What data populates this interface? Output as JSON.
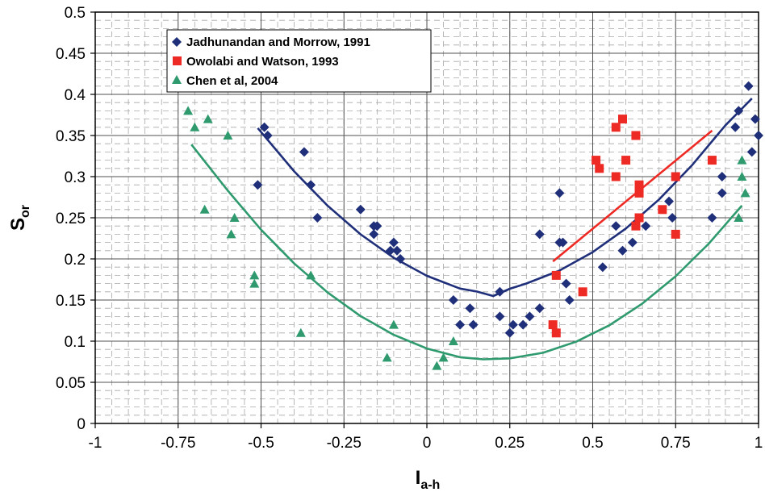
{
  "chart_data": {
    "type": "scatter",
    "title": "",
    "xlabel": {
      "main": "I",
      "sub": "a-h"
    },
    "ylabel": {
      "main": "S",
      "sub": "or"
    },
    "xlim": [
      -1,
      1
    ],
    "ylim": [
      0,
      0.5
    ],
    "x_ticks": [
      "-1",
      "-0.75",
      "-0.5",
      "-0.25",
      "0",
      "0.25",
      "0.5",
      "0.75",
      "1"
    ],
    "y_ticks": [
      "0",
      "0.05",
      "0.1",
      "0.15",
      "0.2",
      "0.25",
      "0.3",
      "0.35",
      "0.4",
      "0.45",
      "0.5"
    ],
    "grid": true,
    "legend_position": "top-left",
    "series": [
      {
        "name": "Jadhunandan and Morrow, 1991",
        "marker": "diamond",
        "color": "#1f2f7a",
        "points": [
          [
            -0.51,
            0.29
          ],
          [
            -0.49,
            0.36
          ],
          [
            -0.48,
            0.35
          ],
          [
            -0.37,
            0.33
          ],
          [
            -0.35,
            0.29
          ],
          [
            -0.33,
            0.25
          ],
          [
            -0.2,
            0.26
          ],
          [
            -0.16,
            0.23
          ],
          [
            -0.16,
            0.24
          ],
          [
            -0.15,
            0.24
          ],
          [
            -0.11,
            0.21
          ],
          [
            -0.1,
            0.22
          ],
          [
            -0.09,
            0.21
          ],
          [
            -0.08,
            0.2
          ],
          [
            0.08,
            0.15
          ],
          [
            0.1,
            0.12
          ],
          [
            0.13,
            0.14
          ],
          [
            0.14,
            0.12
          ],
          [
            0.22,
            0.13
          ],
          [
            0.22,
            0.16
          ],
          [
            0.25,
            0.11
          ],
          [
            0.26,
            0.12
          ],
          [
            0.29,
            0.12
          ],
          [
            0.31,
            0.13
          ],
          [
            0.34,
            0.14
          ],
          [
            0.34,
            0.23
          ],
          [
            0.4,
            0.28
          ],
          [
            0.4,
            0.22
          ],
          [
            0.41,
            0.22
          ],
          [
            0.42,
            0.17
          ],
          [
            0.43,
            0.15
          ],
          [
            0.53,
            0.19
          ],
          [
            0.57,
            0.24
          ],
          [
            0.59,
            0.21
          ],
          [
            0.62,
            0.22
          ],
          [
            0.66,
            0.24
          ],
          [
            0.73,
            0.27
          ],
          [
            0.74,
            0.25
          ],
          [
            0.86,
            0.25
          ],
          [
            0.89,
            0.3
          ],
          [
            0.89,
            0.28
          ],
          [
            0.93,
            0.36
          ],
          [
            0.94,
            0.38
          ],
          [
            0.97,
            0.41
          ],
          [
            0.98,
            0.33
          ],
          [
            0.99,
            0.37
          ],
          [
            1.0,
            0.35
          ]
        ],
        "trend": [
          [
            -0.51,
            0.359
          ],
          [
            -0.4,
            0.3064
          ],
          [
            -0.3,
            0.2649
          ],
          [
            -0.2,
            0.2299
          ],
          [
            -0.1,
            0.2014
          ],
          [
            0.0,
            0.1794
          ],
          [
            0.1,
            0.1639
          ],
          [
            0.15,
            0.1604
          ],
          [
            0.2,
            0.1549
          ],
          [
            0.25,
            0.1637
          ],
          [
            0.3,
            0.1701
          ],
          [
            0.4,
            0.1859
          ],
          [
            0.5,
            0.2082
          ],
          [
            0.6,
            0.237
          ],
          [
            0.7,
            0.2723
          ],
          [
            0.8,
            0.3141
          ],
          [
            0.9,
            0.3624
          ],
          [
            0.98,
            0.395
          ]
        ]
      },
      {
        "name": "Owolabi and Watson, 1993",
        "marker": "square",
        "color": "#ee2a24",
        "points": [
          [
            0.38,
            0.12
          ],
          [
            0.39,
            0.11
          ],
          [
            0.39,
            0.18
          ],
          [
            0.47,
            0.16
          ],
          [
            0.51,
            0.32
          ],
          [
            0.52,
            0.31
          ],
          [
            0.57,
            0.36
          ],
          [
            0.57,
            0.3
          ],
          [
            0.59,
            0.37
          ],
          [
            0.6,
            0.32
          ],
          [
            0.63,
            0.35
          ],
          [
            0.63,
            0.24
          ],
          [
            0.64,
            0.29
          ],
          [
            0.64,
            0.28
          ],
          [
            0.64,
            0.25
          ],
          [
            0.71,
            0.26
          ],
          [
            0.75,
            0.3
          ],
          [
            0.75,
            0.23
          ],
          [
            0.86,
            0.32
          ]
        ],
        "trend": [
          [
            0.38,
            0.197
          ],
          [
            0.86,
            0.356
          ]
        ]
      },
      {
        "name": "Chen et al, 2004",
        "marker": "triangle",
        "color": "#2e9a6e",
        "points": [
          [
            -0.72,
            0.38
          ],
          [
            -0.7,
            0.36
          ],
          [
            -0.67,
            0.26
          ],
          [
            -0.66,
            0.37
          ],
          [
            -0.6,
            0.35
          ],
          [
            -0.59,
            0.23
          ],
          [
            -0.58,
            0.25
          ],
          [
            -0.52,
            0.18
          ],
          [
            -0.52,
            0.17
          ],
          [
            -0.38,
            0.11
          ],
          [
            -0.35,
            0.18
          ],
          [
            -0.12,
            0.08
          ],
          [
            -0.1,
            0.12
          ],
          [
            0.03,
            0.07
          ],
          [
            0.05,
            0.08
          ],
          [
            0.08,
            0.1
          ],
          [
            0.94,
            0.25
          ],
          [
            0.95,
            0.32
          ],
          [
            0.95,
            0.3
          ],
          [
            0.96,
            0.28
          ]
        ],
        "trend": [
          [
            -0.71,
            0.339
          ],
          [
            -0.6,
            0.2828
          ],
          [
            -0.5,
            0.2355
          ],
          [
            -0.4,
            0.1944
          ],
          [
            -0.3,
            0.1594
          ],
          [
            -0.2,
            0.1305
          ],
          [
            -0.1,
            0.1077
          ],
          [
            0.0,
            0.0911
          ],
          [
            0.1,
            0.0805
          ],
          [
            0.17,
            0.0779
          ],
          [
            0.25,
            0.0791
          ],
          [
            0.35,
            0.0859
          ],
          [
            0.45,
            0.0993
          ],
          [
            0.55,
            0.1193
          ],
          [
            0.65,
            0.1458
          ],
          [
            0.75,
            0.1789
          ],
          [
            0.85,
            0.2186
          ],
          [
            0.95,
            0.2648
          ]
        ]
      }
    ]
  }
}
